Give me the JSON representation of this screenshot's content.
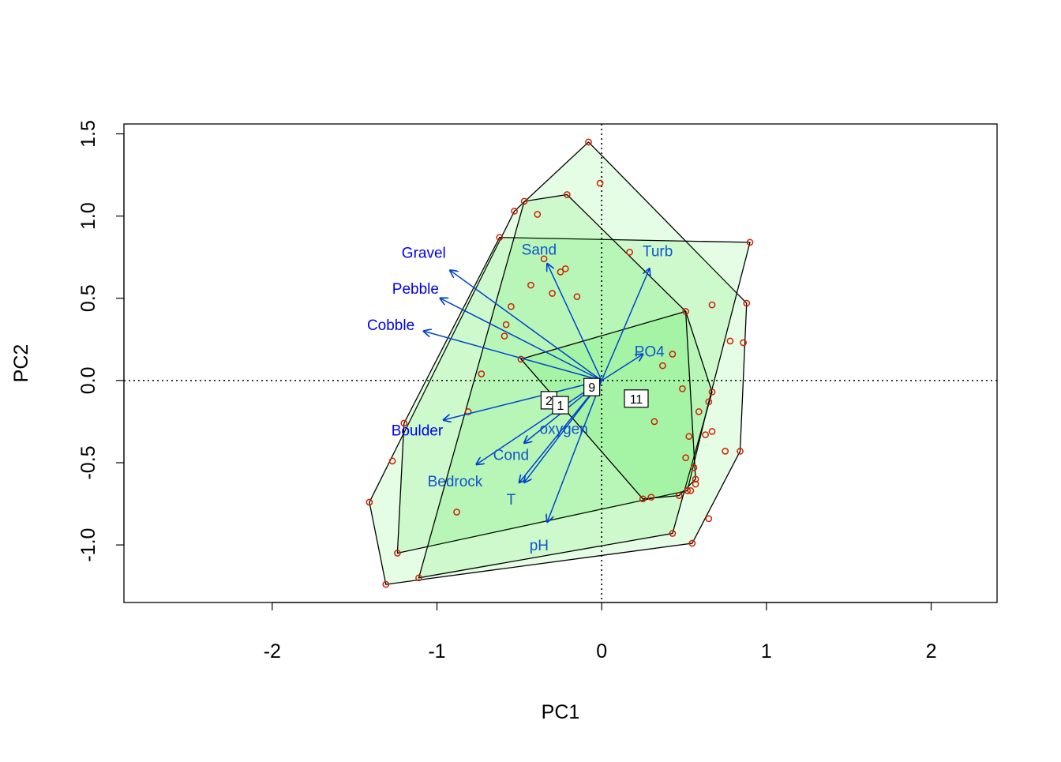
{
  "chart_data": {
    "type": "scatter",
    "subtype": "pca-biplot",
    "xlabel": "PC1",
    "ylabel": "PC2",
    "xlim": [
      -2.9,
      2.4
    ],
    "ylim": [
      -1.35,
      1.56
    ],
    "x_ticks": [
      -2,
      -1,
      0,
      1,
      2
    ],
    "y_ticks": [
      -1.0,
      -0.5,
      0.0,
      0.5,
      1.0,
      1.5
    ],
    "x_tick_labels": [
      "-2",
      "-1",
      "0",
      "1",
      "2"
    ],
    "y_tick_labels": [
      "-1.0",
      "-0.5",
      "0.0",
      "0.5",
      "1.0",
      "1.5"
    ],
    "reference_lines": {
      "x": 0,
      "y": 0,
      "style": "dotted"
    },
    "colors": {
      "points": "#cc2200",
      "arrows": "#0044cc",
      "arrow_labels": [
        "#0000ee",
        "#1155cc"
      ],
      "hull_fill": "#00dd00",
      "hull_stroke": "#000000"
    },
    "points": [
      [
        -0.08,
        1.45
      ],
      [
        -0.01,
        1.2
      ],
      [
        -0.21,
        1.13
      ],
      [
        -0.47,
        1.09
      ],
      [
        -0.53,
        1.03
      ],
      [
        -0.39,
        1.01
      ],
      [
        -0.62,
        0.87
      ],
      [
        0.9,
        0.84
      ],
      [
        0.17,
        0.78
      ],
      [
        -0.35,
        0.74
      ],
      [
        -0.22,
        0.68
      ],
      [
        -0.25,
        0.66
      ],
      [
        -0.43,
        0.58
      ],
      [
        -0.3,
        0.53
      ],
      [
        -0.15,
        0.51
      ],
      [
        0.67,
        0.46
      ],
      [
        0.88,
        0.47
      ],
      [
        -0.55,
        0.45
      ],
      [
        0.51,
        0.42
      ],
      [
        -0.58,
        0.34
      ],
      [
        -0.59,
        0.27
      ],
      [
        0.78,
        0.24
      ],
      [
        0.86,
        0.23
      ],
      [
        0.43,
        0.16
      ],
      [
        -0.49,
        0.13
      ],
      [
        0.37,
        0.09
      ],
      [
        -0.73,
        0.04
      ],
      [
        0.49,
        -0.05
      ],
      [
        0.67,
        -0.07
      ],
      [
        0.65,
        -0.13
      ],
      [
        0.59,
        -0.19
      ],
      [
        -0.81,
        -0.19
      ],
      [
        0.32,
        -0.25
      ],
      [
        -1.2,
        -0.26
      ],
      [
        0.67,
        -0.31
      ],
      [
        0.63,
        -0.33
      ],
      [
        0.53,
        -0.34
      ],
      [
        0.75,
        -0.43
      ],
      [
        0.84,
        -0.43
      ],
      [
        0.51,
        -0.47
      ],
      [
        -1.27,
        -0.49
      ],
      [
        0.56,
        -0.53
      ],
      [
        0.57,
        -0.6
      ],
      [
        0.57,
        -0.63
      ],
      [
        0.54,
        -0.67
      ],
      [
        0.52,
        -0.67
      ],
      [
        0.47,
        -0.7
      ],
      [
        0.3,
        -0.71
      ],
      [
        0.25,
        -0.72
      ],
      [
        -1.41,
        -0.74
      ],
      [
        -0.88,
        -0.8
      ],
      [
        0.65,
        -0.84
      ],
      [
        0.43,
        -0.93
      ],
      [
        0.55,
        -0.99
      ],
      [
        -1.24,
        -1.05
      ],
      [
        -1.11,
        -1.2
      ],
      [
        -1.31,
        -1.24
      ]
    ],
    "hulls": [
      {
        "name": "hull-a",
        "vertices": [
          [
            -0.08,
            1.45
          ],
          [
            0.88,
            0.47
          ],
          [
            0.84,
            -0.43
          ],
          [
            0.55,
            -0.99
          ],
          [
            -1.31,
            -1.24
          ],
          [
            -1.41,
            -0.74
          ],
          [
            -0.53,
            1.03
          ]
        ]
      },
      {
        "name": "hull-b",
        "vertices": [
          [
            -0.62,
            0.87
          ],
          [
            0.9,
            0.84
          ],
          [
            0.65,
            -0.13
          ],
          [
            0.52,
            -0.67
          ],
          [
            -1.24,
            -1.05
          ],
          [
            -1.2,
            -0.26
          ]
        ]
      },
      {
        "name": "hull-c",
        "vertices": [
          [
            -0.21,
            1.13
          ],
          [
            0.51,
            0.42
          ],
          [
            0.67,
            -0.07
          ],
          [
            0.43,
            -0.93
          ],
          [
            -1.11,
            -1.2
          ],
          [
            -0.47,
            1.09
          ]
        ]
      },
      {
        "name": "hull-d",
        "vertices": [
          [
            -0.49,
            0.13
          ],
          [
            0.51,
            0.42
          ],
          [
            0.57,
            -0.6
          ],
          [
            0.47,
            -0.7
          ],
          [
            0.25,
            -0.72
          ]
        ]
      }
    ],
    "arrows": [
      {
        "label": "Gravel",
        "end": [
          -0.92,
          0.67
        ],
        "label_pos": [
          -1.08,
          0.78
        ],
        "label_color": "#0000ee"
      },
      {
        "label": "Pebble",
        "end": [
          -0.98,
          0.5
        ],
        "label_pos": [
          -1.13,
          0.56
        ],
        "label_color": "#0000ee"
      },
      {
        "label": "Cobble",
        "end": [
          -1.08,
          0.3
        ],
        "label_pos": [
          -1.28,
          0.34
        ],
        "label_color": "#0000ee"
      },
      {
        "label": "Sand",
        "end": [
          -0.33,
          0.71
        ],
        "label_pos": [
          -0.38,
          0.8
        ],
        "label_color": "#1155cc"
      },
      {
        "label": "Turb",
        "end": [
          0.29,
          0.68
        ],
        "label_pos": [
          0.34,
          0.79
        ],
        "label_color": "#1155cc"
      },
      {
        "label": "PO4",
        "end": [
          0.25,
          0.16
        ],
        "label_pos": [
          0.29,
          0.18
        ],
        "label_color": "#1155cc"
      },
      {
        "label": "Boulder",
        "end": [
          -0.96,
          -0.24
        ],
        "label_pos": [
          -1.12,
          -0.3
        ],
        "label_color": "#0000ee"
      },
      {
        "label": "oxygen",
        "end": [
          -0.47,
          -0.38
        ],
        "label_pos": [
          -0.23,
          -0.29
        ],
        "label_color": "#1155cc"
      },
      {
        "label": "Cond",
        "end": [
          -0.76,
          -0.51
        ],
        "label_pos": [
          -0.55,
          -0.45
        ],
        "label_color": "#1155cc"
      },
      {
        "label": "Bedrock",
        "end": [
          -0.5,
          -0.62
        ],
        "label_pos": [
          -0.89,
          -0.61
        ],
        "label_color": "#1155cc"
      },
      {
        "label": "T",
        "end": [
          -0.47,
          -0.62
        ],
        "label_pos": [
          -0.55,
          -0.72
        ],
        "label_color": "#1155cc"
      },
      {
        "label": "pH",
        "end": [
          -0.33,
          -0.86
        ],
        "label_pos": [
          -0.38,
          -1.0
        ],
        "label_color": "#1155cc"
      }
    ],
    "arrow_origin": [
      0,
      0
    ],
    "group_labels": [
      {
        "label": "9",
        "pos": [
          -0.06,
          -0.04
        ]
      },
      {
        "label": "2",
        "pos": [
          -0.32,
          -0.12
        ]
      },
      {
        "label": "1",
        "pos": [
          -0.25,
          -0.15
        ]
      },
      {
        "label": "11",
        "pos": [
          0.21,
          -0.11
        ]
      }
    ]
  }
}
